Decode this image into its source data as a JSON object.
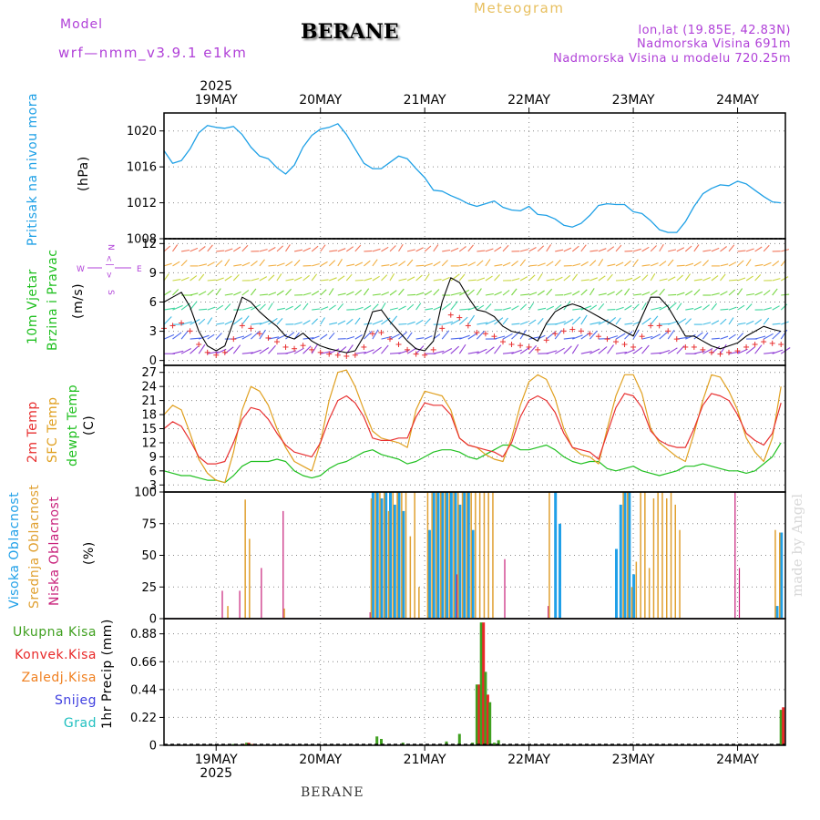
{
  "header": {
    "model_label": "Model",
    "model_name": "wrf—nmm_v3.9.1  e1km",
    "station": "BERANE",
    "meteogram_label": "Meteogram",
    "coords": "lon,lat (19.85E, 42.83N)",
    "altitude": "Nadmorska Visina 691m",
    "model_altitude": "Nadmorska Visina u modelu 720.25m"
  },
  "watermark": "made by Angel",
  "footer_station": "BERANE",
  "colors": {
    "pressure": "#1ea0e6",
    "temp2m": "#e83030",
    "sfc_temp": "#e0a020",
    "dewpt": "#20c020",
    "high_cloud": "#20a0e8",
    "mid_cloud": "#e0a030",
    "low_cloud": "#c8207a",
    "total_rain": "#40a020",
    "conv_rain": "#e82828",
    "frz_rain": "#f08020",
    "snow": "#4040e0",
    "hail": "#20c0c0"
  },
  "panel_labels": {
    "pressure": [
      "Pritisak na nivou mora",
      "(hPa)"
    ],
    "wind": [
      "10m Vjetar",
      "Brzina i Pravac",
      "(m/s)"
    ],
    "temp": [
      "2m Temp",
      "SFC Temp",
      "dewpt Temp",
      "(C)"
    ],
    "cloud": [
      "Visoka Oblacnost",
      "Srednja Oblacnost",
      "Niska Oblacnost",
      "(%)"
    ],
    "precip_ylabel": "1hr Precip (mm)",
    "precip_legend": [
      "Ukupna Kisa",
      "Konvek.Kisa",
      "Zaledj.Kisa",
      "Snijeg",
      "Grad"
    ],
    "compass": [
      "N",
      "<",
      "|",
      ">",
      "W",
      "E",
      "S"
    ]
  },
  "dates": {
    "year": "2025",
    "labels": [
      "19MAY",
      "20MAY",
      "21MAY",
      "22MAY",
      "23MAY",
      "24MAY"
    ]
  },
  "chart_data": [
    {
      "type": "line",
      "name": "pressure",
      "ylabel": "(hPa)",
      "ylim": [
        1008,
        1022
      ],
      "yticks": [
        1008,
        1012,
        1016,
        1020
      ],
      "x_hours": [
        0,
        2,
        4,
        6,
        8,
        10,
        12,
        14,
        16,
        18,
        20,
        22,
        24,
        26,
        28,
        30,
        32,
        34,
        36,
        38,
        40,
        42,
        44,
        46,
        48,
        50,
        52,
        54,
        56,
        58,
        60,
        62,
        64,
        66,
        68,
        70,
        72,
        74,
        76,
        78,
        80,
        82,
        84,
        86,
        88,
        90,
        92,
        94,
        96,
        98,
        100,
        102,
        104,
        106,
        108,
        110,
        112,
        114,
        116,
        118,
        120,
        122,
        124,
        126,
        128,
        130,
        132,
        134,
        136,
        138,
        140,
        142
      ],
      "series": [
        {
          "values": [
            1017.8,
            1016.4,
            1016.7,
            1018.0,
            1019.8,
            1020.6,
            1020.4,
            1020.3,
            1020.5,
            1019.6,
            1018.2,
            1017.2,
            1016.9,
            1015.9,
            1015.2,
            1016.2,
            1018.2,
            1019.5,
            1020.2,
            1020.4,
            1020.8,
            1019.6,
            1018.0,
            1016.4,
            1015.8,
            1015.8,
            1016.5,
            1017.2,
            1016.9,
            1015.8,
            1014.8,
            1013.4,
            1013.3,
            1012.8,
            1012.4,
            1011.9,
            1011.6,
            1011.9,
            1012.2,
            1011.5,
            1011.2,
            1011.1,
            1011.6,
            1010.7,
            1010.6,
            1010.2,
            1009.5,
            1009.3,
            1009.7,
            1010.6,
            1011.7,
            1011.9,
            1011.8,
            1011.8,
            1011.0,
            1010.8,
            1010.0,
            1009.0,
            1008.7,
            1008.7,
            1009.9,
            1011.6,
            1013.0,
            1013.6,
            1014.0,
            1013.9,
            1014.4,
            1014.1,
            1013.4,
            1012.7,
            1012.1,
            1012.0
          ]
        }
      ]
    },
    {
      "type": "line",
      "name": "wind speed",
      "ylabel": "(m/s)",
      "ylim": [
        -0.5,
        12.5
      ],
      "yticks": [
        0,
        3,
        6,
        9,
        12
      ],
      "x_hours": [
        0,
        2,
        4,
        6,
        8,
        10,
        12,
        14,
        16,
        18,
        20,
        22,
        24,
        26,
        28,
        30,
        32,
        34,
        36,
        38,
        40,
        42,
        44,
        46,
        48,
        50,
        52,
        54,
        56,
        58,
        60,
        62,
        64,
        66,
        68,
        70,
        72,
        74,
        76,
        78,
        80,
        82,
        84,
        86,
        88,
        90,
        92,
        94,
        96,
        98,
        100,
        102,
        104,
        106,
        108,
        110,
        112,
        114,
        116,
        118,
        120,
        122,
        124,
        126,
        128,
        130,
        132,
        134,
        136,
        138,
        140,
        142
      ],
      "series": [
        {
          "values": [
            6.0,
            6.5,
            7.0,
            5.5,
            3.0,
            1.5,
            1.0,
            1.5,
            4.0,
            6.5,
            6.0,
            5.0,
            4.2,
            3.5,
            2.5,
            2.2,
            2.8,
            2.0,
            1.5,
            1.2,
            1.0,
            0.8,
            1.0,
            2.5,
            5.0,
            5.2,
            4.0,
            3.0,
            2.0,
            1.2,
            1.0,
            2.0,
            6.0,
            8.5,
            8.0,
            6.5,
            5.2,
            5.0,
            4.5,
            3.5,
            3.0,
            2.8,
            2.5,
            2.0,
            3.8,
            5.0,
            5.5,
            5.8,
            5.5,
            5.0,
            4.5,
            4.0,
            3.5,
            3.0,
            2.5,
            4.5,
            6.5,
            6.5,
            5.5,
            4.0,
            2.5,
            2.5,
            2.0,
            1.5,
            1.2,
            1.5,
            1.8,
            2.5,
            3.0,
            3.5,
            3.2,
            3.0
          ]
        }
      ]
    },
    {
      "type": "line",
      "name": "temperature",
      "ylabel": "(C)",
      "ylim": [
        1.5,
        28.5
      ],
      "yticks": [
        3,
        6,
        9,
        12,
        15,
        18,
        21,
        24,
        27
      ],
      "x_hours": [
        0,
        2,
        4,
        6,
        8,
        10,
        12,
        14,
        16,
        18,
        20,
        22,
        24,
        26,
        28,
        30,
        32,
        34,
        36,
        38,
        40,
        42,
        44,
        46,
        48,
        50,
        52,
        54,
        56,
        58,
        60,
        62,
        64,
        66,
        68,
        70,
        72,
        74,
        76,
        78,
        80,
        82,
        84,
        86,
        88,
        90,
        92,
        94,
        96,
        98,
        100,
        102,
        104,
        106,
        108,
        110,
        112,
        114,
        116,
        118,
        120,
        122,
        124,
        126,
        128,
        130,
        132,
        134,
        136,
        138,
        140,
        142
      ],
      "series": [
        {
          "name": "2m Temp",
          "values": [
            15.0,
            16.5,
            15.5,
            12.5,
            9.0,
            7.5,
            7.5,
            8.0,
            12.0,
            17.0,
            19.5,
            19.0,
            17.0,
            14.0,
            11.5,
            10.0,
            9.5,
            9.0,
            12.0,
            17.0,
            21.0,
            22.0,
            20.5,
            17.5,
            13.0,
            12.5,
            12.5,
            13.0,
            13.0,
            17.5,
            20.5,
            20.0,
            20.0,
            18.0,
            13.0,
            11.5,
            11.0,
            10.5,
            10.0,
            9.0,
            12.0,
            17.5,
            21.0,
            22.0,
            21.0,
            18.5,
            14.0,
            11.0,
            10.5,
            10.0,
            8.5,
            14.0,
            19.5,
            22.5,
            22.0,
            19.5,
            14.5,
            12.5,
            11.5,
            11.0,
            11.0,
            15.0,
            20.0,
            22.5,
            22.0,
            21.0,
            18.0,
            14.0,
            12.5,
            11.5,
            14.0,
            20.5
          ]
        },
        {
          "name": "SFC Temp",
          "values": [
            18.0,
            20.0,
            19.0,
            14.0,
            8.5,
            5.5,
            4.0,
            3.5,
            10.0,
            19.0,
            24.0,
            23.0,
            20.0,
            15.0,
            11.0,
            8.0,
            7.0,
            6.0,
            12.0,
            21.0,
            27.0,
            27.5,
            24.0,
            19.0,
            14.5,
            13.0,
            12.5,
            12.0,
            11.0,
            19.0,
            23.0,
            22.5,
            22.0,
            19.0,
            13.0,
            11.5,
            11.0,
            9.5,
            8.5,
            8.0,
            13.0,
            20.0,
            25.0,
            26.5,
            25.5,
            21.5,
            15.0,
            11.0,
            9.5,
            9.0,
            7.5,
            15.0,
            22.0,
            26.5,
            26.5,
            22.5,
            15.0,
            12.0,
            10.5,
            9.0,
            8.0,
            14.0,
            21.0,
            26.5,
            26.0,
            23.0,
            19.0,
            13.0,
            10.0,
            8.0,
            13.0,
            24.0
          ]
        },
        {
          "name": "dewpt Temp",
          "values": [
            6.0,
            5.5,
            5.0,
            5.0,
            4.5,
            4.0,
            4.0,
            3.5,
            5.0,
            7.0,
            8.0,
            8.0,
            8.0,
            8.5,
            8.0,
            6.0,
            5.0,
            4.5,
            5.0,
            6.5,
            7.5,
            8.0,
            9.0,
            10.0,
            10.5,
            9.5,
            9.0,
            8.5,
            7.5,
            8.0,
            9.0,
            10.0,
            10.5,
            10.5,
            10.0,
            9.0,
            8.5,
            9.5,
            10.5,
            11.5,
            11.5,
            10.5,
            10.5,
            11.0,
            11.5,
            10.5,
            9.0,
            8.0,
            7.5,
            8.0,
            8.0,
            6.5,
            6.0,
            6.5,
            7.0,
            6.0,
            5.5,
            5.0,
            5.5,
            6.0,
            7.0,
            7.0,
            7.5,
            7.0,
            6.5,
            6.0,
            6.0,
            5.5,
            6.0,
            7.5,
            9.0,
            12.0
          ]
        }
      ]
    },
    {
      "type": "bar",
      "name": "cloud cover",
      "ylabel": "(%)",
      "ylim": [
        0,
        100
      ],
      "yticks": [
        0,
        25,
        50,
        75,
        100
      ],
      "x_hours": [
        13,
        15,
        17,
        19,
        20,
        21,
        22,
        27,
        28,
        47,
        48,
        49,
        50,
        51,
        52,
        53,
        54,
        55,
        56,
        57,
        58,
        59,
        60,
        61,
        62,
        63,
        64,
        65,
        66,
        67,
        68,
        69,
        70,
        71,
        72,
        73,
        74,
        75,
        76,
        77,
        78,
        79,
        80,
        81,
        88,
        89,
        90,
        91,
        92,
        104,
        105,
        106,
        107,
        108,
        109,
        110,
        111,
        112,
        113,
        114,
        115,
        116,
        117,
        118,
        119,
        131,
        132,
        141,
        142
      ],
      "series": [
        {
          "name": "Visoka Oblacnost",
          "values": [
            0,
            0,
            0,
            0,
            0,
            0,
            0,
            0,
            0,
            0,
            100,
            100,
            95,
            100,
            100,
            90,
            100,
            85,
            0,
            0,
            0,
            0,
            0,
            70,
            100,
            100,
            100,
            100,
            100,
            100,
            90,
            100,
            100,
            70,
            0,
            0,
            0,
            0,
            0,
            0,
            0,
            0,
            0,
            0,
            0,
            0,
            100,
            75,
            0,
            55,
            90,
            100,
            100,
            35,
            0,
            0,
            0,
            0,
            0,
            0,
            0,
            0,
            0,
            0,
            0,
            0,
            0,
            10,
            68
          ]
        },
        {
          "name": "Srednja Oblacnost",
          "values": [
            0,
            10,
            0,
            94,
            63,
            0,
            0,
            0,
            8,
            0,
            95,
            100,
            100,
            100,
            85,
            100,
            100,
            100,
            100,
            65,
            100,
            25,
            0,
            100,
            100,
            100,
            100,
            100,
            100,
            100,
            100,
            100,
            100,
            100,
            100,
            100,
            100,
            100,
            100,
            0,
            0,
            0,
            0,
            0,
            0,
            100,
            0,
            0,
            0,
            0,
            0,
            100,
            100,
            25,
            45,
            100,
            100,
            40,
            95,
            100,
            100,
            95,
            100,
            90,
            70,
            0,
            0,
            70,
            68
          ]
        },
        {
          "name": "Niska Oblacnost",
          "values": [
            22,
            0,
            22,
            0,
            0,
            0,
            40,
            85,
            0,
            5,
            0,
            0,
            0,
            0,
            0,
            0,
            0,
            0,
            0,
            0,
            0,
            0,
            0,
            0,
            0,
            0,
            0,
            0,
            0,
            35,
            0,
            0,
            0,
            0,
            0,
            0,
            0,
            0,
            0,
            0,
            47,
            0,
            0,
            0,
            10,
            0,
            0,
            0,
            0,
            0,
            0,
            0,
            0,
            0,
            0,
            0,
            0,
            0,
            0,
            0,
            0,
            0,
            0,
            0,
            0,
            100,
            40,
            0,
            0
          ]
        }
      ]
    },
    {
      "type": "bar",
      "name": "precipitation",
      "ylabel": "1hr Precip (mm)",
      "ylim": [
        0,
        1.0
      ],
      "yticks": [
        0,
        0.22,
        0.44,
        0.66,
        0.88
      ],
      "x_hours": [
        16,
        18,
        19,
        20,
        49,
        50,
        55,
        65,
        68,
        71,
        72,
        73,
        74,
        75,
        76,
        77,
        142
      ],
      "series": [
        {
          "name": "Ukupna Kisa",
          "values": [
            0.01,
            0.01,
            0.02,
            0.01,
            0.07,
            0.05,
            0.02,
            0.03,
            0.09,
            0.02,
            0.48,
            0.97,
            0.58,
            0.34,
            0.02,
            0.04,
            0.28
          ]
        },
        {
          "name": "Konvek.Kisa",
          "values": [
            0.01,
            0.01,
            0.02,
            0.01,
            0.0,
            0.0,
            0.0,
            0.0,
            0.0,
            0.0,
            0.48,
            0.97,
            0.4,
            0.0,
            0.0,
            0.0,
            0.3
          ]
        }
      ]
    }
  ]
}
